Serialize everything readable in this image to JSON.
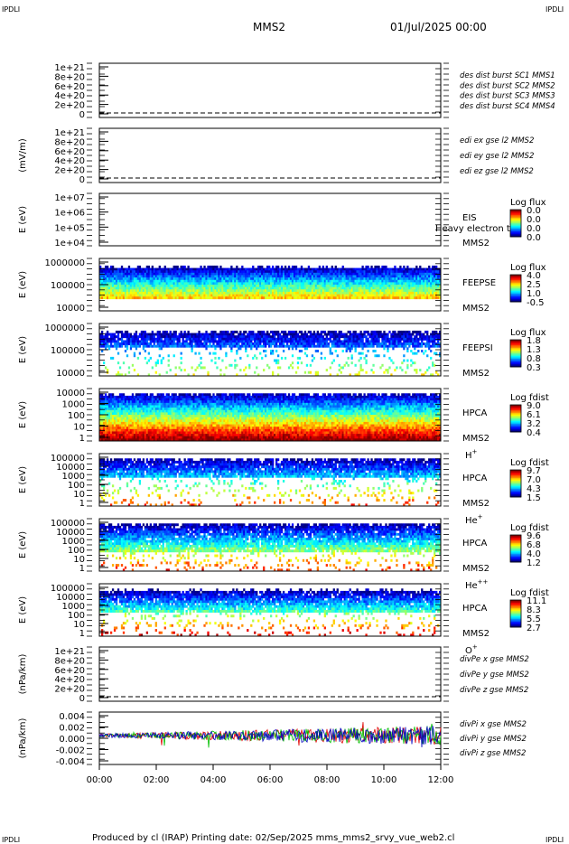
{
  "corner_label": "IPDLI",
  "header": {
    "spacecraft": "MMS2",
    "date": "01/Jul/2025 00:00"
  },
  "footer": "Produced by cl (IRAP)    Printing date: 02/Sep/2025    mms_mms2_srvy_vue_web2.cl",
  "colors": {
    "red": "#e00000",
    "green": "#00c000",
    "blue": "#0000c0",
    "magenta": "#c000c0",
    "dash": "#000000"
  },
  "chart_data": [
    {
      "id": "p1",
      "type": "line",
      "ylabel": "",
      "yticks": [
        "1e+21",
        "8e+20",
        "6e+20",
        "4e+20",
        "2e+20",
        "0"
      ],
      "ylim": [
        0,
        1e+21
      ],
      "legend": [
        {
          "text": "des dist burst SC1 MMS1",
          "color": "#0000c0"
        },
        {
          "text": "des dist burst SC2 MMS2",
          "color": "#c000c0"
        },
        {
          "text": "des dist burst SC3 MMS3",
          "color": "#e00000"
        },
        {
          "text": "des dist burst SC4 MMS4",
          "color": "#00c000"
        }
      ],
      "zero_line": true
    },
    {
      "id": "p2",
      "type": "line",
      "ylabel": "(mV/m)",
      "yticks": [
        "1e+21",
        "8e+20",
        "6e+20",
        "4e+20",
        "2e+20",
        "0"
      ],
      "ylim": [
        0,
        1e+21
      ],
      "legend": [
        {
          "text": "edi ex gse l2 MMS2",
          "color": "#e00000"
        },
        {
          "text": "edi ey gse l2 MMS2",
          "color": "#00c000"
        },
        {
          "text": "edi ez gse l2 MMS2",
          "color": "#0000c0"
        }
      ],
      "zero_line": true
    },
    {
      "id": "p3",
      "type": "heatmap",
      "ylabel": "E (eV)",
      "yscale": "log",
      "yticks": [
        "1e+07",
        "1e+06",
        "1e+05",
        "1e+04"
      ],
      "instrument": [
        "EIS",
        "MMS2"
      ],
      "overlay_text": "Heavy electron to",
      "colorbar": {
        "title": "Log flux",
        "labels": [
          "0.0",
          "0.0",
          "0.0",
          "0.0"
        ]
      },
      "empty": true
    },
    {
      "id": "p4",
      "type": "heatmap",
      "ylabel": "E (eV)",
      "yscale": "log",
      "yticks": [
        "1000000",
        "100000",
        "10000"
      ],
      "instrument": [
        "FEEPSE",
        "MMS2"
      ],
      "colorbar": {
        "title": "Log flux",
        "labels": [
          "4.0",
          "2.5",
          "1.0",
          "-0.5"
        ]
      }
    },
    {
      "id": "p5",
      "type": "heatmap",
      "ylabel": "E (eV)",
      "yscale": "log",
      "yticks": [
        "1000000",
        "100000",
        "10000"
      ],
      "instrument": [
        "FEEPSI",
        "MMS2"
      ],
      "colorbar": {
        "title": "Log flux",
        "labels": [
          "1.8",
          "1.3",
          "0.8",
          "0.3"
        ]
      }
    },
    {
      "id": "p6",
      "type": "heatmap",
      "ylabel": "E (eV)",
      "yscale": "log",
      "yticks": [
        "10000",
        "1000",
        "100",
        "10",
        "1"
      ],
      "instrument": [
        "HPCA",
        "MMS2"
      ],
      "species": "H",
      "charge": "+",
      "colorbar": {
        "title": "Log fdist",
        "labels": [
          "9.0",
          "6.1",
          "3.2",
          "0.4"
        ]
      }
    },
    {
      "id": "p7",
      "type": "heatmap",
      "ylabel": "E (eV)",
      "yscale": "log",
      "yticks": [
        "100000",
        "10000",
        "1000",
        "100",
        "10",
        "1"
      ],
      "instrument": [
        "HPCA",
        "MMS2"
      ],
      "species": "He",
      "charge": "+",
      "colorbar": {
        "title": "Log fdist",
        "labels": [
          "9.7",
          "7.0",
          "4.3",
          "1.5"
        ]
      }
    },
    {
      "id": "p8",
      "type": "heatmap",
      "ylabel": "E (eV)",
      "yscale": "log",
      "yticks": [
        "100000",
        "10000",
        "1000",
        "100",
        "10",
        "1"
      ],
      "instrument": [
        "HPCA",
        "MMS2"
      ],
      "species": "He",
      "charge": "++",
      "colorbar": {
        "title": "Log fdist",
        "labels": [
          "9.6",
          "6.8",
          "4.0",
          "1.2"
        ]
      }
    },
    {
      "id": "p9",
      "type": "heatmap",
      "ylabel": "E (eV)",
      "yscale": "log",
      "yticks": [
        "100000",
        "10000",
        "1000",
        "100",
        "10",
        "1"
      ],
      "instrument": [
        "HPCA",
        "MMS2"
      ],
      "species": "O",
      "charge": "+",
      "colorbar": {
        "title": "Log fdist",
        "labels": [
          "11.1",
          "8.3",
          "5.5",
          "2.7"
        ]
      }
    },
    {
      "id": "p10",
      "type": "line",
      "ylabel": "(nPa/km)",
      "yticks": [
        "1e+21",
        "8e+20",
        "6e+20",
        "4e+20",
        "2e+20",
        "0"
      ],
      "ylim": [
        0,
        1e+21
      ],
      "legend": [
        {
          "text": "divPe x gse MMS2",
          "color": "#e00000"
        },
        {
          "text": "divPe y gse MMS2",
          "color": "#00c000"
        },
        {
          "text": "divPe z gse MMS2",
          "color": "#0000c0"
        }
      ],
      "zero_line": true
    },
    {
      "id": "p11",
      "type": "line",
      "ylabel": "(nPa/km)",
      "yticks": [
        "0.004",
        "0.002",
        "0.000",
        "-0.002",
        "-0.004"
      ],
      "ylim": [
        -0.005,
        0.005
      ],
      "legend": [
        {
          "text": "divPi x gse MMS2",
          "color": "#e00000"
        },
        {
          "text": "divPi y gse MMS2",
          "color": "#00c000"
        },
        {
          "text": "divPi z gse MMS2",
          "color": "#0000c0"
        }
      ],
      "series_noise": true
    }
  ],
  "xaxis": {
    "ticks": [
      "00:00",
      "02:00",
      "04:00",
      "06:00",
      "08:00",
      "10:00",
      "12:00"
    ],
    "range_hours": [
      0,
      12
    ]
  }
}
